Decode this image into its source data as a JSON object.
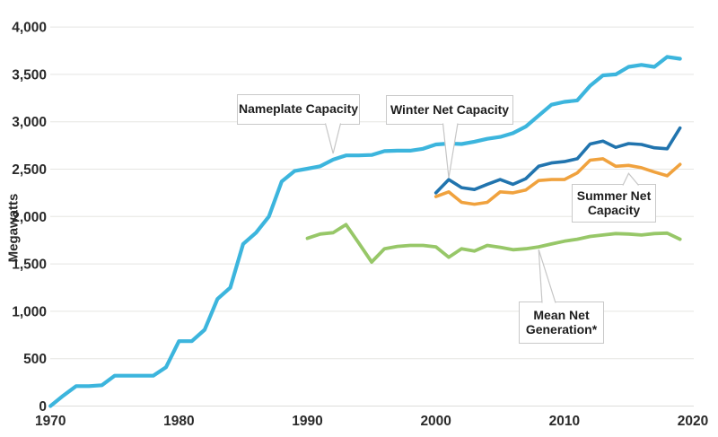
{
  "chart_data": {
    "type": "line",
    "title": "",
    "xlabel": "",
    "ylabel": "Megawatts",
    "xlim": [
      1970,
      2020
    ],
    "ylim": [
      0,
      4000
    ],
    "grid": true,
    "legend_position": "annotated-callouts",
    "y_ticks": [
      {
        "value": 0,
        "label": "0"
      },
      {
        "value": 500,
        "label": "500"
      },
      {
        "value": 1000,
        "label": "1,000"
      },
      {
        "value": 1500,
        "label": "1,500"
      },
      {
        "value": 2000,
        "label": "2,000"
      },
      {
        "value": 2500,
        "label": "2,500"
      },
      {
        "value": 3000,
        "label": "3,000"
      },
      {
        "value": 3500,
        "label": "3,500"
      },
      {
        "value": 4000,
        "label": "4,000"
      }
    ],
    "x_ticks": [
      {
        "year": 1970,
        "label": "1970"
      },
      {
        "year": 1980,
        "label": "1980"
      },
      {
        "year": 1990,
        "label": "1990"
      },
      {
        "year": 2000,
        "label": "2000"
      },
      {
        "year": 2010,
        "label": "2010"
      },
      {
        "year": 2020,
        "label": "2020"
      }
    ],
    "series": [
      {
        "name": "Nameplate Capacity",
        "color": "#3cb5dd",
        "start_year": 1970,
        "values": [
          0,
          110,
          210,
          210,
          220,
          320,
          320,
          320,
          320,
          410,
          685,
          685,
          805,
          1130,
          1250,
          1710,
          1830,
          2000,
          2370,
          2480,
          2505,
          2530,
          2600,
          2645,
          2645,
          2650,
          2690,
          2695,
          2695,
          2715,
          2760,
          2770,
          2765,
          2790,
          2820,
          2840,
          2880,
          2950,
          3065,
          3180,
          3210,
          3225,
          3380,
          3490,
          3500,
          3580,
          3600,
          3580,
          3685,
          3665
        ]
      },
      {
        "name": "Winter Net Capacity",
        "color": "#2174ae",
        "start_year": 2000,
        "values": [
          2250,
          2390,
          2305,
          2285,
          2340,
          2390,
          2340,
          2400,
          2530,
          2565,
          2580,
          2610,
          2765,
          2795,
          2730,
          2770,
          2760,
          2725,
          2715,
          2935
        ]
      },
      {
        "name": "Summer Net Capacity",
        "color": "#f0a23e",
        "start_year": 2000,
        "values": [
          2210,
          2260,
          2150,
          2130,
          2150,
          2260,
          2250,
          2280,
          2380,
          2390,
          2390,
          2460,
          2595,
          2610,
          2530,
          2540,
          2515,
          2470,
          2430,
          2550
        ]
      },
      {
        "name": "Mean Net Generation*",
        "color": "#97c768",
        "start_year": 1990,
        "values": [
          1770,
          1815,
          1830,
          1915,
          1720,
          1520,
          1660,
          1685,
          1695,
          1695,
          1680,
          1570,
          1660,
          1635,
          1695,
          1675,
          1650,
          1660,
          1680,
          1710,
          1740,
          1760,
          1790,
          1805,
          1820,
          1815,
          1805,
          1820,
          1825,
          1760
        ]
      }
    ],
    "annotations": [
      {
        "id": "nameplate",
        "label": "Nameplate Capacity",
        "target_year": 1992,
        "target_series": "Nameplate Capacity"
      },
      {
        "id": "winter",
        "label": "Winter Net Capacity",
        "target_year": 2001,
        "target_series": "Winter Net Capacity"
      },
      {
        "id": "summer",
        "label": "Summer Net Capacity",
        "target_year": 2015,
        "target_series": "Summer Net Capacity"
      },
      {
        "id": "mean",
        "label": "Mean Net Generation*",
        "target_year": 2008,
        "target_series": "Mean Net Generation*"
      }
    ]
  }
}
